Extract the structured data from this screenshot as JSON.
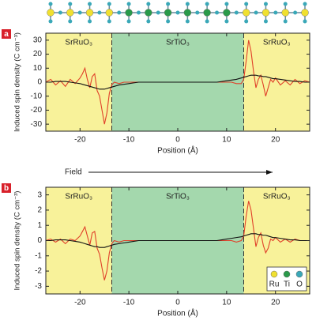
{
  "annotation": "Field",
  "chart_data": [
    {
      "type": "line",
      "panel_label": "a",
      "xlabel": "Position (Å)",
      "ylabel": "Induced spin density (C cm⁻³)",
      "xlim": [
        -27,
        27
      ],
      "ylim": [
        -35,
        35
      ],
      "xticks": [
        -20,
        -10,
        0,
        10,
        20
      ],
      "yticks": [
        -30,
        -20,
        -10,
        0,
        10,
        20,
        30
      ],
      "regions": [
        {
          "label": "SrRuO₃",
          "from": -27,
          "to": -13.5,
          "color": "#f8f29a"
        },
        {
          "label": "SrTiO₃",
          "from": -13.5,
          "to": 13.5,
          "color": "#a4d8ad"
        },
        {
          "label": "SrRuO₃",
          "from": 13.5,
          "to": 27,
          "color": "#f8f29a"
        }
      ],
      "x": [
        -27,
        -26,
        -25,
        -24,
        -23,
        -22,
        -21,
        -20,
        -19.5,
        -19,
        -18.5,
        -18,
        -17.5,
        -17,
        -16.5,
        -16,
        -15.5,
        -15,
        -14.5,
        -14,
        -13.5,
        -13,
        -12,
        -11,
        -10,
        -9,
        -8,
        -7,
        -6,
        -5,
        -4,
        -3,
        -2,
        -1,
        0,
        1,
        2,
        3,
        4,
        5,
        6,
        7,
        8,
        9,
        10,
        11,
        12,
        13,
        13.5,
        14,
        14.5,
        15,
        15.5,
        16,
        16.5,
        17,
        17.5,
        18,
        18.5,
        19,
        19.5,
        20,
        21,
        22,
        23,
        24,
        25,
        26,
        27
      ],
      "series": [
        {
          "color": "#e0402a",
          "values": [
            0,
            2,
            -2,
            1,
            -3,
            2,
            -1,
            3,
            6,
            10,
            2,
            -4,
            4,
            6,
            -6,
            -10,
            -20,
            -30,
            -22,
            -8,
            -2,
            0,
            -1,
            0,
            0,
            0,
            0,
            0,
            0,
            0,
            0,
            0,
            0,
            0,
            0,
            0,
            0,
            0,
            0,
            0,
            0,
            0,
            0,
            0,
            0,
            0,
            -1,
            -1,
            2,
            15,
            30,
            22,
            8,
            -4,
            2,
            5,
            -2,
            -10,
            -4,
            2,
            0,
            3,
            -2,
            1,
            -2,
            2,
            -1,
            1,
            0
          ]
        },
        {
          "color": "#111111",
          "values": [
            0,
            0,
            0.5,
            0.5,
            0.5,
            0,
            -0.5,
            -1,
            -1.5,
            -2,
            -2.5,
            -3,
            -3.5,
            -4,
            -4.5,
            -5,
            -5,
            -5,
            -4.5,
            -4,
            -3.5,
            -3,
            -2,
            -1.5,
            -1,
            -0.5,
            0,
            0,
            0,
            0,
            0,
            0,
            0,
            0,
            0,
            0,
            0,
            0,
            0,
            0,
            0,
            0,
            0,
            0.5,
            1,
            1.5,
            2,
            3,
            3.5,
            4,
            4.5,
            5,
            5,
            5,
            4.5,
            4.5,
            4,
            4,
            3.5,
            3,
            2.5,
            2.5,
            2,
            1.5,
            1,
            0.5,
            0.5,
            0,
            0
          ]
        }
      ]
    },
    {
      "type": "line",
      "panel_label": "b",
      "xlabel": "Position (Å)",
      "ylabel": "Induced spin density (C cm⁻³)",
      "xlim": [
        -27,
        27
      ],
      "ylim": [
        -3.5,
        3.5
      ],
      "xticks": [
        -20,
        -10,
        0,
        10,
        20
      ],
      "yticks": [
        -3,
        -2,
        -1,
        0,
        1,
        2,
        3
      ],
      "regions": [
        {
          "label": "SrRuO₃",
          "from": -27,
          "to": -13.5,
          "color": "#f8f29a"
        },
        {
          "label": "SrTiO₃",
          "from": -13.5,
          "to": 13.5,
          "color": "#a4d8ad"
        },
        {
          "label": "SrRuO₃",
          "from": 13.5,
          "to": 27,
          "color": "#f8f29a"
        }
      ],
      "legend": [
        {
          "label": "Ru",
          "color": "#f0e030"
        },
        {
          "label": "Ti",
          "color": "#2a9a4a"
        },
        {
          "label": "O",
          "color": "#3aa8b8"
        }
      ],
      "x": [
        -27,
        -26,
        -25,
        -24,
        -23,
        -22,
        -21,
        -20,
        -19.5,
        -19,
        -18.5,
        -18,
        -17.5,
        -17,
        -16.5,
        -16,
        -15.5,
        -15,
        -14.5,
        -14,
        -13.5,
        -13,
        -12,
        -11,
        -10,
        -9,
        -8,
        -7,
        -6,
        -5,
        -4,
        -3,
        -2,
        -1,
        0,
        1,
        2,
        3,
        4,
        5,
        6,
        7,
        8,
        9,
        10,
        11,
        12,
        13,
        13.5,
        14,
        14.5,
        15,
        15.5,
        16,
        16.5,
        17,
        17.5,
        18,
        18.5,
        19,
        19.5,
        20,
        21,
        22,
        23,
        24,
        25,
        26,
        27
      ],
      "series": [
        {
          "color": "#e0402a",
          "values": [
            0,
            0.1,
            -0.1,
            0.1,
            -0.2,
            0.1,
            0,
            0.3,
            0.6,
            0.9,
            0.3,
            -0.3,
            0.5,
            0.6,
            -0.5,
            -0.9,
            -1.8,
            -2.6,
            -2,
            -0.8,
            -0.2,
            0,
            -0.1,
            0,
            0,
            0,
            0,
            0,
            0,
            0,
            0,
            0,
            0,
            0,
            0,
            0,
            0,
            0,
            0,
            0,
            0,
            0,
            0,
            0,
            0,
            0,
            -0.1,
            0,
            0.3,
            1.6,
            2.6,
            2,
            0.8,
            -0.4,
            0.2,
            0.5,
            -0.3,
            -0.8,
            -0.5,
            0.1,
            0,
            0.2,
            -0.1,
            0.1,
            -0.1,
            0.1,
            0,
            0,
            0
          ]
        },
        {
          "color": "#111111",
          "values": [
            0,
            0,
            0.05,
            0.05,
            0.05,
            0,
            -0.05,
            -0.1,
            -0.15,
            -0.2,
            -0.25,
            -0.3,
            -0.35,
            -0.4,
            -0.4,
            -0.45,
            -0.45,
            -0.45,
            -0.4,
            -0.35,
            -0.3,
            -0.25,
            -0.2,
            -0.15,
            -0.1,
            -0.05,
            0,
            0,
            0,
            0,
            0,
            0,
            0,
            0,
            0,
            0,
            0,
            0,
            0,
            0,
            0,
            0,
            0,
            0.05,
            0.1,
            0.15,
            0.2,
            0.25,
            0.3,
            0.35,
            0.4,
            0.45,
            0.45,
            0.45,
            0.4,
            0.4,
            0.35,
            0.35,
            0.3,
            0.25,
            0.2,
            0.2,
            0.15,
            0.1,
            0.05,
            0.05,
            0,
            0,
            0
          ]
        }
      ]
    }
  ]
}
